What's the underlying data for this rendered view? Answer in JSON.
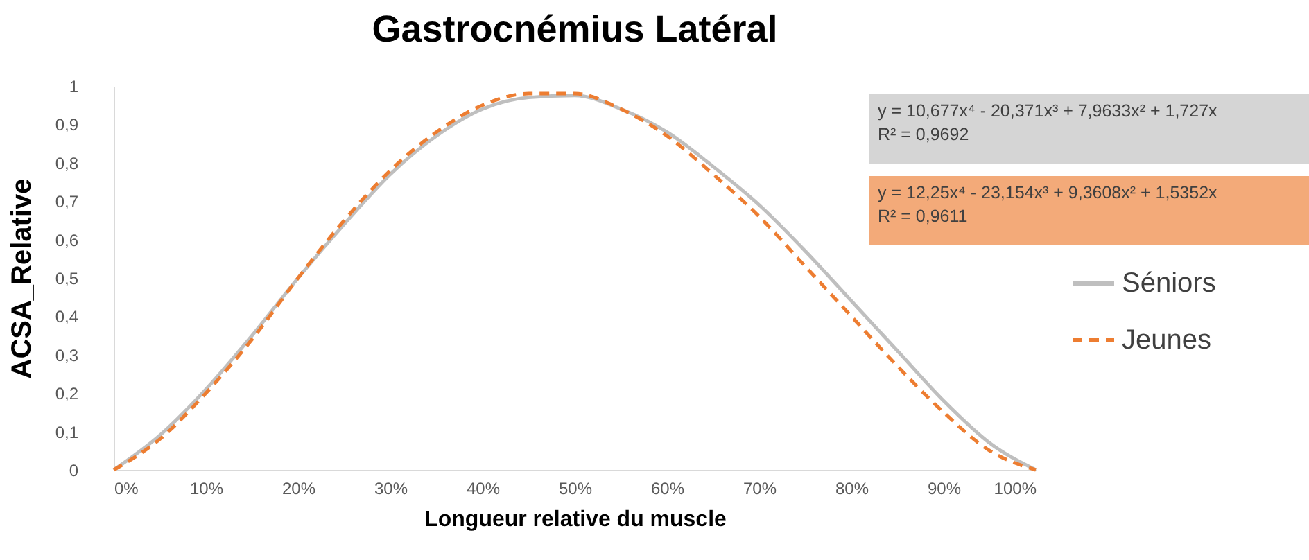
{
  "chart_data": {
    "type": "line",
    "title": "Gastrocnémius Latéral",
    "xlabel": "Longueur relative du muscle",
    "ylabel": "ACSA_Relative",
    "x": [
      0,
      0.05,
      0.1,
      0.15,
      0.2,
      0.25,
      0.3,
      0.35,
      0.4,
      0.45,
      0.5,
      0.55,
      0.6,
      0.65,
      0.7,
      0.75,
      0.8,
      0.85,
      0.9,
      0.95,
      1
    ],
    "series": [
      {
        "name": "Séniors",
        "color": "#bfbfbf",
        "line_style": "solid",
        "values": [
          0,
          0.09,
          0.21,
          0.35,
          0.5,
          0.64,
          0.77,
          0.87,
          0.94,
          0.97,
          0.975,
          0.94,
          0.88,
          0.79,
          0.69,
          0.57,
          0.44,
          0.31,
          0.18,
          0.07,
          0
        ]
      },
      {
        "name": "Jeunes",
        "color": "#ed7d31",
        "line_style": "dashed",
        "values": [
          0,
          0.08,
          0.2,
          0.34,
          0.5,
          0.65,
          0.78,
          0.88,
          0.95,
          0.98,
          0.98,
          0.94,
          0.87,
          0.77,
          0.66,
          0.53,
          0.4,
          0.27,
          0.15,
          0.05,
          0
        ]
      }
    ],
    "annotations": [
      "y = 10,677x⁴ - 20,371x³ + 7,9633x² + 1,727x\nR² = 0,9692",
      "y = 12,25x⁴ - 23,154x³ + 9,3608x² + 1,5352x\nR² = 0,9611"
    ],
    "xlim": [
      0,
      1
    ],
    "ylim": [
      0,
      1
    ],
    "xticks": [
      {
        "value": 0,
        "label": "0%"
      },
      {
        "value": 0.1,
        "label": "10%"
      },
      {
        "value": 0.2,
        "label": "20%"
      },
      {
        "value": 0.3,
        "label": "30%"
      },
      {
        "value": 0.4,
        "label": "40%"
      },
      {
        "value": 0.5,
        "label": "50%"
      },
      {
        "value": 0.6,
        "label": "60%"
      },
      {
        "value": 0.7,
        "label": "70%"
      },
      {
        "value": 0.8,
        "label": "80%"
      },
      {
        "value": 0.9,
        "label": "90%"
      },
      {
        "value": 1,
        "label": "100%"
      }
    ],
    "yticks": [
      0,
      {
        "value": 0.1,
        "label": "0,1"
      },
      {
        "value": 0.2,
        "label": "0,2"
      },
      {
        "value": 0.3,
        "label": "0,3"
      },
      {
        "value": 0.4,
        "label": "0,4"
      },
      {
        "value": 0.5,
        "label": "0,5"
      },
      {
        "value": 0.6,
        "label": "0,6"
      },
      {
        "value": 0.7,
        "label": "0,7"
      },
      {
        "value": 0.8,
        "label": "0,8"
      },
      {
        "value": 0.9,
        "label": "0,9"
      },
      1
    ],
    "grid": false,
    "legend": "right",
    "marker": "none"
  }
}
